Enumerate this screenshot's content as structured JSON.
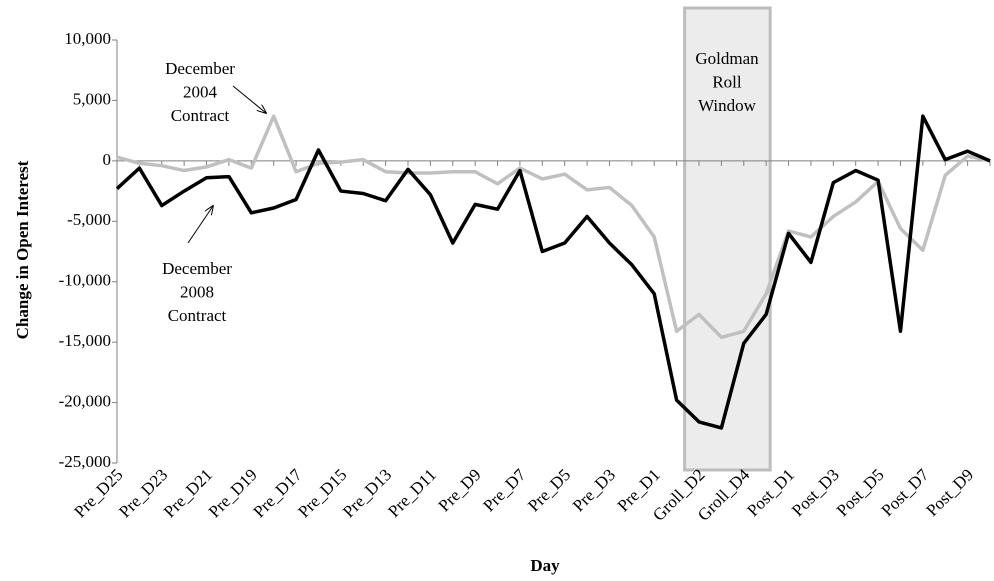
{
  "chart_data": {
    "type": "line",
    "x_label": "Day",
    "y_label": "Change in Open Interest",
    "categories": [
      "Pre_D25",
      null,
      "Pre_D23",
      null,
      "Pre_D21",
      null,
      "Pre_D19",
      null,
      "Pre_D17",
      null,
      "Pre_D15",
      null,
      "Pre_D13",
      null,
      "Pre_D11",
      null,
      "Pre_D9",
      null,
      "Pre_D7",
      null,
      "Pre_D5",
      null,
      "Pre_D3",
      null,
      "Pre_D1",
      null,
      "Groll_D2",
      null,
      "Groll_D4",
      null,
      "Post_D1",
      null,
      "Post_D3",
      null,
      "Post_D5",
      null,
      "Post_D7",
      null,
      "Post_D9",
      null
    ],
    "series": [
      {
        "color": "#c0c0c0",
        "values": [
          300,
          -200,
          -400,
          -800,
          -500,
          100,
          -600,
          3700,
          -900,
          -200,
          -100,
          100,
          -900,
          -1000,
          -1000,
          -900,
          -900,
          -1900,
          -600,
          -1500,
          -1100,
          -2400,
          -2200,
          -3700,
          -6300,
          -14100,
          -12700,
          -14600,
          -14100,
          -11000,
          -5800,
          -6300,
          -4600,
          -3400,
          -1700,
          -5600,
          -7400,
          -1200,
          400,
          0
        ]
      },
      {
        "color": "#000000",
        "values": [
          -2300,
          -600,
          -3700,
          -2500,
          -1400,
          -1300,
          -4300,
          -3900,
          -3200,
          900,
          -2500,
          -2700,
          -3300,
          -700,
          -2800,
          -6800,
          -3600,
          -4000,
          -800,
          -7500,
          -6800,
          -4600,
          -6800,
          -8600,
          -11000,
          -19800,
          -21600,
          -22100,
          -15100,
          -12700,
          -6000,
          -8400,
          -1800,
          -800,
          -1600,
          -14100,
          3700,
          100,
          800,
          0
        ]
      }
    ],
    "ylim": [
      -25000,
      10000
    ],
    "yticks": [
      {
        "value": -25000,
        "label": "-25,000"
      },
      {
        "value": -20000,
        "label": "-20,000"
      },
      {
        "value": -15000,
        "label": "-15,000"
      },
      {
        "value": -10000,
        "label": "-10,000"
      },
      {
        "value": -5000,
        "label": "-5,000"
      },
      0,
      {
        "value": 5000,
        "label": "5,000"
      },
      {
        "value": 10000,
        "label": "10,000"
      }
    ],
    "annotations": [
      {
        "lines": [
          "December",
          "2004",
          "Contract"
        ]
      },
      {
        "lines": [
          "December",
          "2008",
          "Contract"
        ]
      },
      {
        "lines": [
          "Goldman",
          "Roll",
          "Window"
        ]
      }
    ]
  }
}
